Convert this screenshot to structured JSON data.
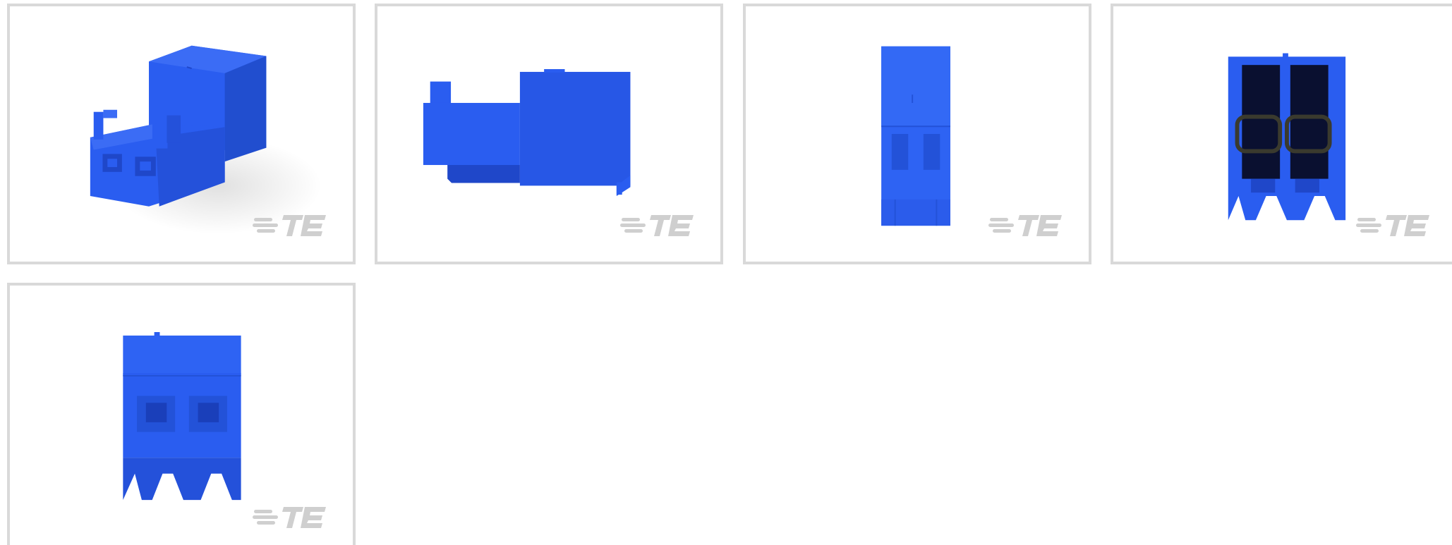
{
  "gallery": {
    "images": [
      {
        "view": "isometric",
        "logo": "TE"
      },
      {
        "view": "side",
        "logo": "TE"
      },
      {
        "view": "top",
        "logo": "TE"
      },
      {
        "view": "rear",
        "logo": "TE"
      },
      {
        "view": "front",
        "logo": "TE"
      }
    ]
  },
  "colors": {
    "product_blue": "#2a5df0",
    "product_dark": "#1f47c9",
    "border": "#d9d9d9",
    "logo": "#cfcfcf"
  }
}
